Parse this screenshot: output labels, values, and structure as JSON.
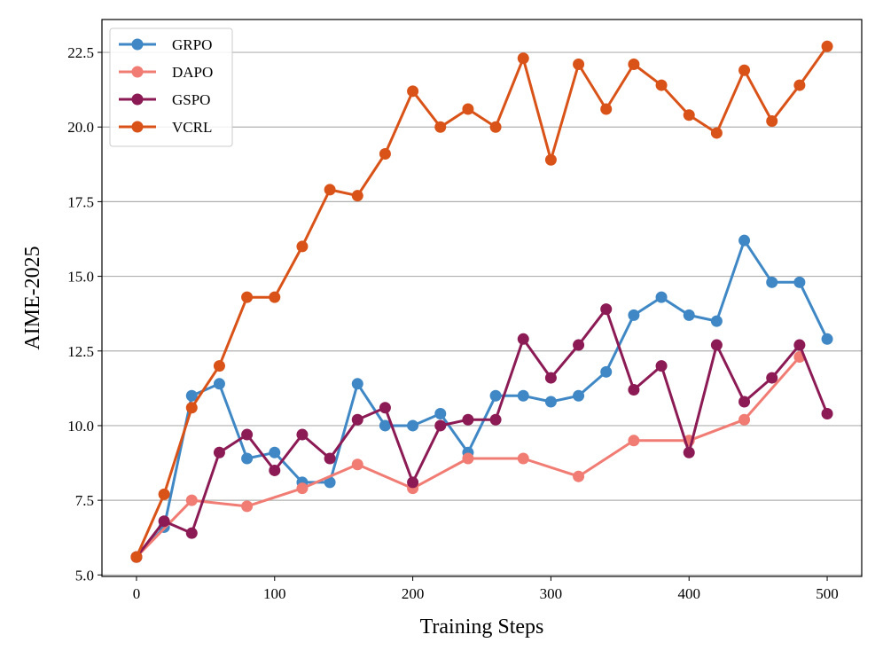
{
  "chart_data": {
    "type": "line",
    "xlabel": "Training Steps",
    "ylabel": "AIME-2025",
    "xlim": [
      -25,
      525
    ],
    "ylim": [
      4.95,
      23.6
    ],
    "xticks": [
      0,
      100,
      200,
      300,
      400,
      500
    ],
    "xtick_labels": [
      "0",
      "100",
      "200",
      "300",
      "400",
      "500"
    ],
    "yticks": [
      5.0,
      7.5,
      10.0,
      12.5,
      15.0,
      17.5,
      20.0,
      22.5
    ],
    "ytick_labels": [
      "5.0",
      "7.5",
      "10.0",
      "12.5",
      "15.0",
      "17.5",
      "20.0",
      "22.5"
    ],
    "grid": "horizontal",
    "legend_position": "top-left",
    "series": [
      {
        "name": "GRPO",
        "color": "#3f88c5",
        "x": [
          0,
          20,
          40,
          60,
          80,
          100,
          120,
          140,
          160,
          180,
          200,
          220,
          240,
          260,
          280,
          300,
          320,
          340,
          360,
          380,
          400,
          420,
          440,
          460,
          480,
          500
        ],
        "values": [
          5.6,
          6.6,
          11.0,
          11.4,
          8.9,
          9.1,
          8.1,
          8.1,
          11.4,
          10.0,
          10.0,
          10.4,
          9.1,
          11.0,
          11.0,
          10.8,
          11.0,
          11.8,
          13.7,
          14.3,
          13.7,
          13.5,
          16.2,
          14.8,
          14.8,
          12.9
        ]
      },
      {
        "name": "DAPO",
        "color": "#f07c74",
        "x": [
          0,
          40,
          80,
          120,
          160,
          200,
          240,
          280,
          320,
          360,
          400,
          440,
          480
        ],
        "values": [
          5.6,
          7.5,
          7.3,
          7.9,
          8.7,
          7.9,
          8.9,
          8.9,
          8.3,
          9.5,
          9.5,
          10.2,
          12.3
        ]
      },
      {
        "name": "GSPO",
        "color": "#8b1a55",
        "x": [
          0,
          20,
          40,
          60,
          80,
          100,
          120,
          140,
          160,
          180,
          200,
          220,
          240,
          260,
          280,
          300,
          320,
          340,
          360,
          380,
          400,
          420,
          440,
          460,
          480,
          500
        ],
        "values": [
          5.6,
          6.8,
          6.4,
          9.1,
          9.7,
          8.5,
          9.7,
          8.9,
          10.2,
          10.6,
          8.1,
          10.0,
          10.2,
          10.2,
          12.9,
          11.6,
          12.7,
          13.9,
          11.2,
          12.0,
          9.1,
          12.7,
          10.8,
          11.6,
          12.7,
          10.4
        ]
      },
      {
        "name": "VCRL",
        "color": "#d95319",
        "x": [
          0,
          20,
          40,
          60,
          80,
          100,
          120,
          140,
          160,
          180,
          200,
          220,
          240,
          260,
          280,
          300,
          320,
          340,
          360,
          380,
          400,
          420,
          440,
          460,
          480,
          500
        ],
        "values": [
          5.6,
          7.7,
          10.6,
          12.0,
          14.3,
          14.3,
          16.0,
          17.9,
          17.7,
          19.1,
          21.2,
          20.0,
          20.6,
          20.0,
          22.3,
          18.9,
          22.1,
          20.6,
          22.1,
          21.4,
          20.4,
          19.8,
          21.9,
          20.2,
          21.4,
          22.7
        ]
      }
    ]
  }
}
